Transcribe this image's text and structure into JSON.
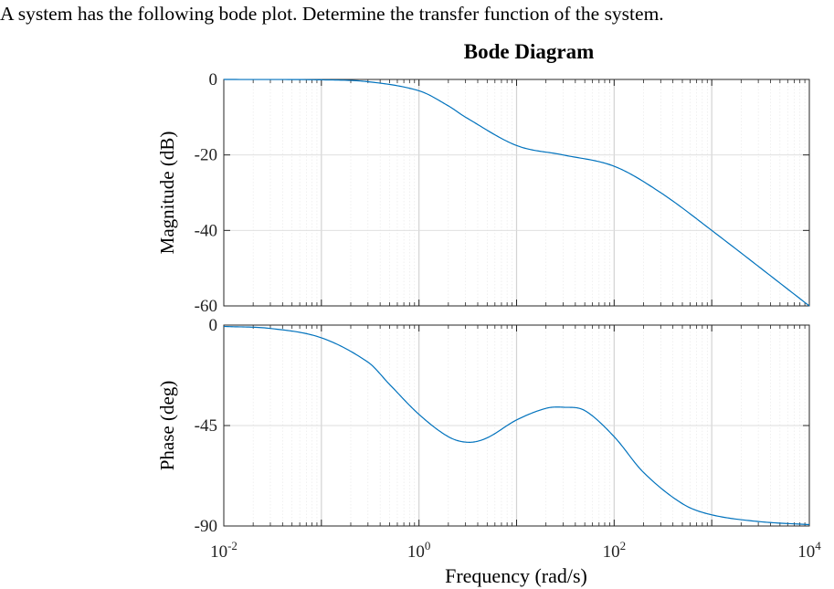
{
  "question": "A system has the following bode plot. Determine the transfer function of the system.",
  "chart_data": {
    "type": "line",
    "title": "Bode Diagram",
    "xlabel": "Frequency  (rad/s)",
    "x_scale": "log",
    "xlim": [
      0.01,
      10000
    ],
    "x_ticks": [
      {
        "base": "10",
        "exp": "-2"
      },
      {
        "base": "10",
        "exp": "0"
      },
      {
        "base": "10",
        "exp": "2"
      },
      {
        "base": "10",
        "exp": "4"
      }
    ],
    "grid": true,
    "line_color": "#0072BD",
    "magnitude": {
      "ylabel": "Magnitude (dB)",
      "ylim": [
        -60,
        0
      ],
      "y_ticks": [
        "0",
        "-20",
        "-40",
        "-60"
      ],
      "x": [
        0.01,
        0.1,
        0.3,
        1,
        2,
        3,
        10,
        30,
        100,
        300,
        1000,
        10000
      ],
      "values": [
        0,
        -0.1,
        -0.6,
        -3.0,
        -7.0,
        -10.0,
        -17.5,
        -20.0,
        -23.0,
        -30.0,
        -40.0,
        -60.0
      ]
    },
    "phase": {
      "ylabel": "Phase (deg)",
      "ylim": [
        -90,
        0
      ],
      "y_ticks": [
        "0",
        "-45",
        "-90"
      ],
      "x": [
        0.01,
        0.03,
        0.1,
        0.3,
        0.5,
        1,
        2,
        3.2,
        5,
        10,
        20,
        30,
        50,
        100,
        200,
        500,
        1000,
        3000,
        10000
      ],
      "values": [
        -0.6,
        -1.5,
        -5.7,
        -16.6,
        -26.6,
        -40,
        -50,
        -52.5,
        -50.5,
        -42.5,
        -37.3,
        -36.8,
        -38.3,
        -50,
        -66,
        -80,
        -85,
        -88,
        -89.4
      ]
    }
  }
}
